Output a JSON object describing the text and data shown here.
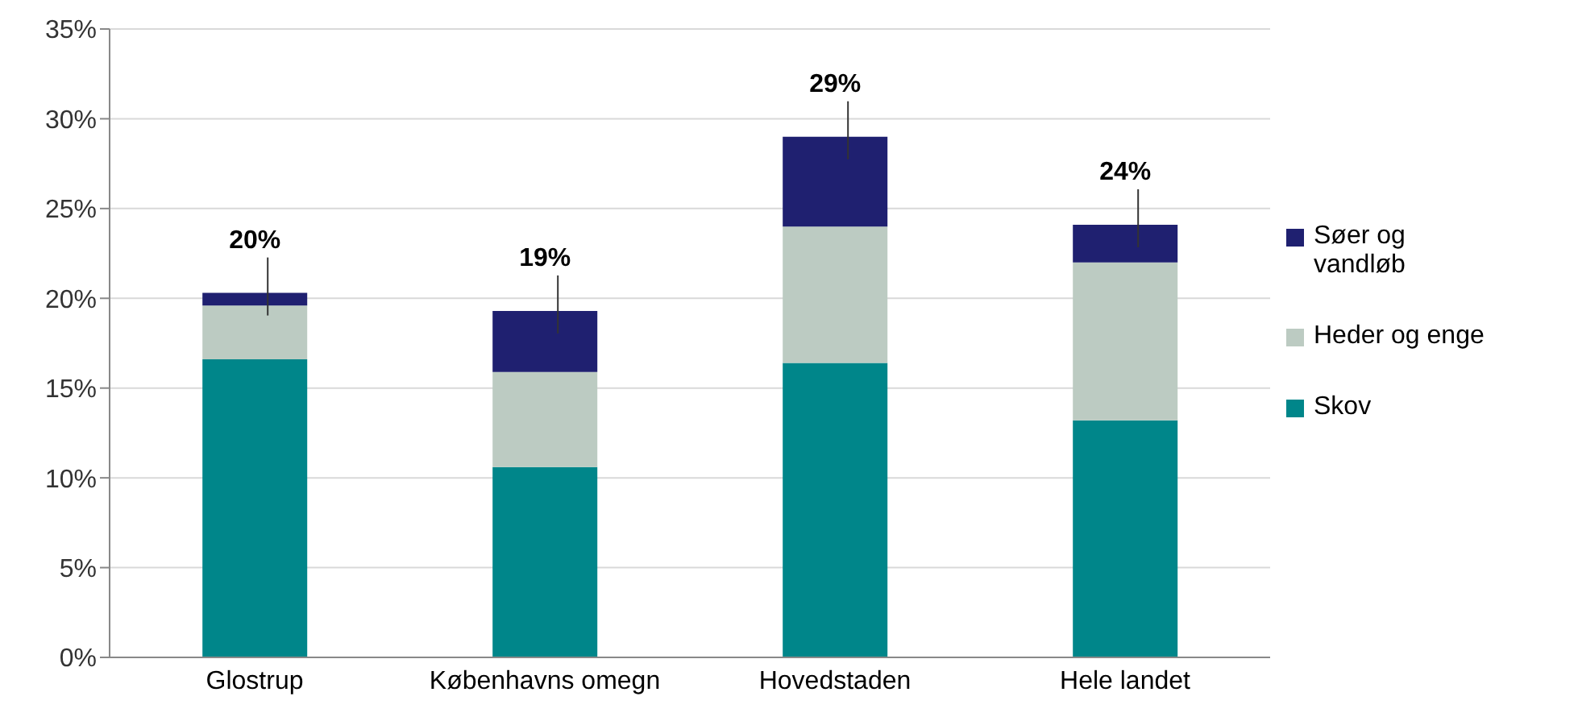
{
  "chart_data": {
    "type": "bar",
    "stacked": true,
    "categories": [
      "Glostrup",
      "Københavns omegn",
      "Hovedstaden",
      "Hele landet"
    ],
    "series": [
      {
        "name": "Skov",
        "color": "#00868a",
        "values": [
          16.6,
          10.6,
          16.4,
          13.2
        ]
      },
      {
        "name": "Heder og enge",
        "color": "#bccbc2",
        "values": [
          3.0,
          5.3,
          7.6,
          8.8
        ]
      },
      {
        "name": "Søer og vandløb",
        "color": "#1f2070",
        "values": [
          0.7,
          3.4,
          5.0,
          2.1
        ]
      }
    ],
    "totals": [
      "20%",
      "19%",
      "29%",
      "24%"
    ],
    "ylim": [
      0,
      35
    ],
    "yticks": [
      {
        "value": 0,
        "label": "0%"
      },
      {
        "value": 5,
        "label": "5%"
      },
      {
        "value": 10,
        "label": "10%"
      },
      {
        "value": 15,
        "label": "15%"
      },
      {
        "value": 20,
        "label": "20%"
      },
      {
        "value": 25,
        "label": "25%"
      },
      {
        "value": 30,
        "label": "30%"
      },
      {
        "value": 35,
        "label": "35%"
      }
    ],
    "grid": "y",
    "legend": "right"
  }
}
